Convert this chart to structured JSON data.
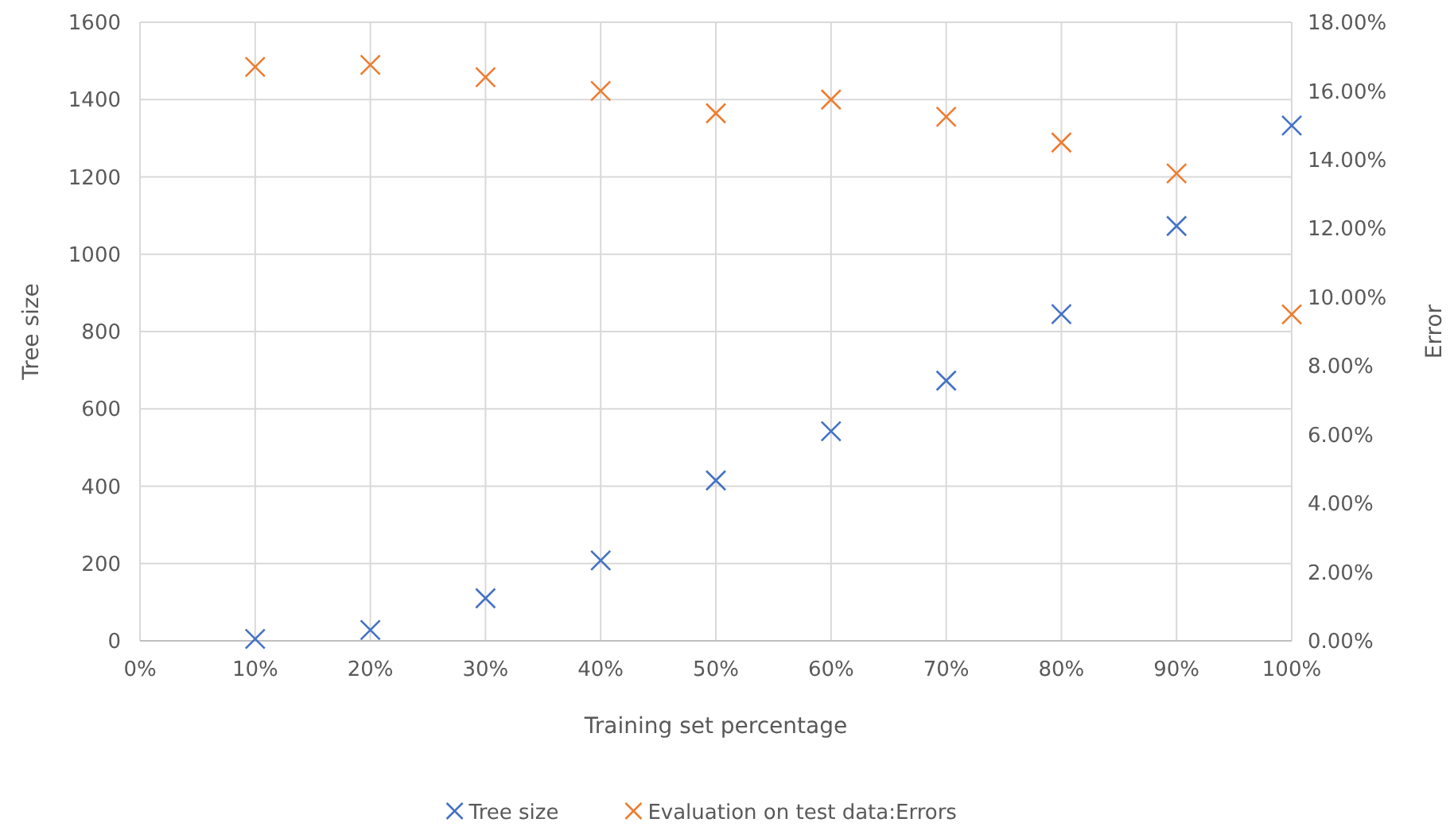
{
  "chart_data": {
    "type": "scatter",
    "xlabel": "Training set percentage",
    "ylabel": "Tree size",
    "y2label": "Error",
    "x": [
      10,
      20,
      30,
      40,
      50,
      60,
      70,
      80,
      90,
      100
    ],
    "series": [
      {
        "name": "Tree size",
        "color": "#4472c4",
        "values": [
          5,
          28,
          110,
          208,
          415,
          542,
          673,
          845,
          1073,
          1333
        ]
      },
      {
        "name": "Evaluation on test data:Errors",
        "color": "#ed7d31",
        "axis": "y2",
        "values": [
          16.7,
          16.76,
          16.4,
          16.0,
          15.35,
          15.75,
          15.25,
          14.5,
          13.6,
          9.5
        ]
      }
    ],
    "xlim": [
      0,
      100
    ],
    "xticks": [
      {
        "value": 0,
        "label": "0%"
      },
      {
        "value": 10,
        "label": "10%"
      },
      {
        "value": 20,
        "label": "20%"
      },
      {
        "value": 30,
        "label": "30%"
      },
      {
        "value": 40,
        "label": "40%"
      },
      {
        "value": 50,
        "label": "50%"
      },
      {
        "value": 60,
        "label": "60%"
      },
      {
        "value": 70,
        "label": "70%"
      },
      {
        "value": 80,
        "label": "80%"
      },
      {
        "value": 90,
        "label": "90%"
      },
      {
        "value": 100,
        "label": "100%"
      }
    ],
    "ylim": [
      0,
      1600
    ],
    "yticks": [
      0,
      200,
      400,
      600,
      800,
      1000,
      1200,
      1400,
      1600
    ],
    "y2lim": [
      0,
      18
    ],
    "y2ticks": [
      {
        "value": 0,
        "label": "0.00%"
      },
      {
        "value": 2,
        "label": "2.00%"
      },
      {
        "value": 4,
        "label": "4.00%"
      },
      {
        "value": 6,
        "label": "6.00%"
      },
      {
        "value": 8,
        "label": "8.00%"
      },
      {
        "value": 10,
        "label": "10.00%"
      },
      {
        "value": 12,
        "label": "12.00%"
      },
      {
        "value": 14,
        "label": "14.00%"
      },
      {
        "value": 16,
        "label": "16.00%"
      },
      {
        "value": 18,
        "label": "18.00%"
      }
    ],
    "grid": true,
    "legend": "bottom",
    "marker": "cross"
  }
}
